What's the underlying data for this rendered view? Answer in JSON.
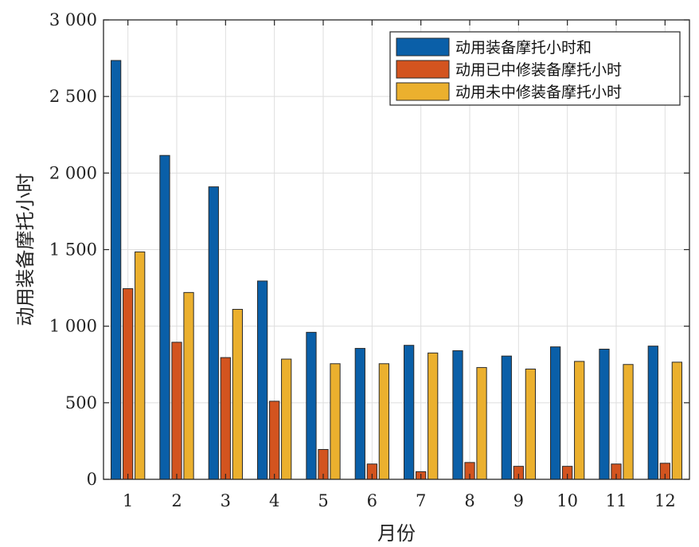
{
  "chart_data": {
    "type": "bar",
    "xlabel": "月份",
    "ylabel": "动用装备摩托小时",
    "categories": [
      "1",
      "2",
      "3",
      "4",
      "5",
      "6",
      "7",
      "8",
      "9",
      "10",
      "11",
      "12"
    ],
    "ylim": [
      0,
      3000
    ],
    "yticks": [
      0,
      500,
      1000,
      1500,
      2000,
      2500,
      3000
    ],
    "ytick_labels": [
      "0",
      "500",
      "1 000",
      "1 500",
      "2 000",
      "2 500",
      "3 000"
    ],
    "grid": true,
    "legend_position": "top-right",
    "series": [
      {
        "name": "动用装备摩托小时和",
        "color": "#0a5fa8",
        "values": [
          2735,
          2115,
          1910,
          1295,
          960,
          855,
          875,
          840,
          805,
          865,
          850,
          870
        ]
      },
      {
        "name": "动用已中修装备摩托小时",
        "color": "#d3541f",
        "values": [
          1245,
          895,
          795,
          510,
          195,
          100,
          50,
          110,
          85,
          85,
          100,
          105
        ]
      },
      {
        "name": "动用未中修装备摩托小时",
        "color": "#ebb02e",
        "values": [
          1485,
          1220,
          1110,
          785,
          755,
          755,
          825,
          730,
          720,
          770,
          750,
          765
        ]
      }
    ]
  }
}
